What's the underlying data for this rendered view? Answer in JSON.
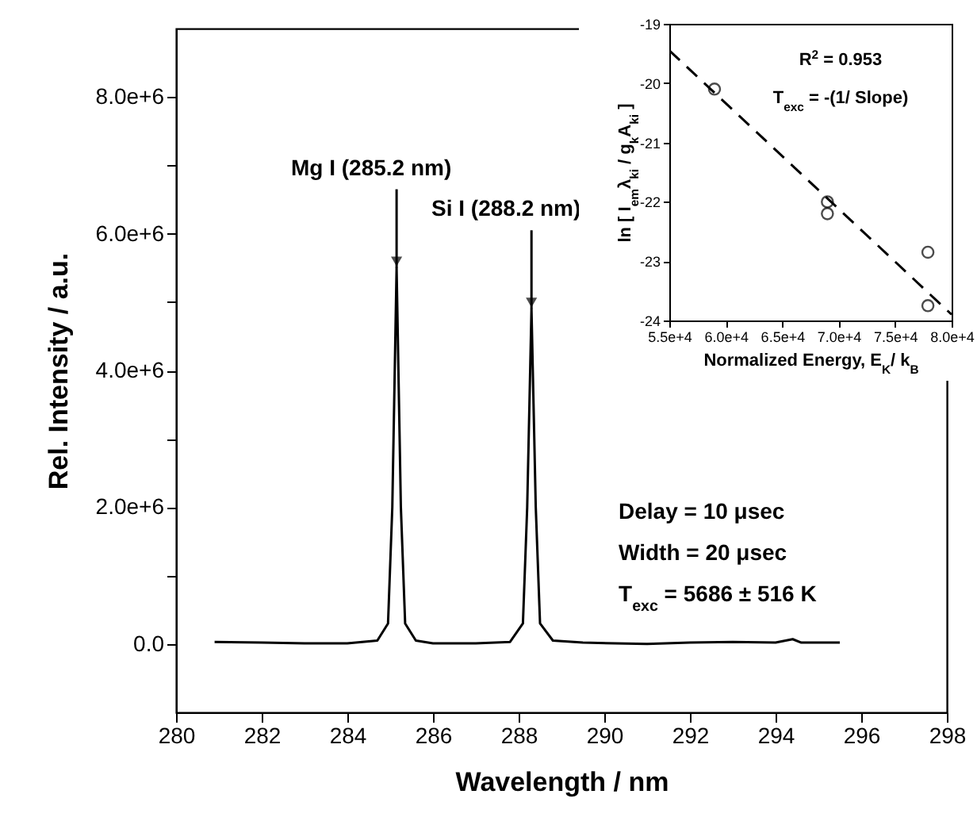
{
  "chart_data": [
    {
      "type": "line",
      "xlabel": "Wavelength / nm",
      "ylabel": "Rel. Intensity / a.u.",
      "color": "#000000",
      "x": [
        280.9,
        282,
        283,
        284,
        284.7,
        284.95,
        285.05,
        285.15,
        285.25,
        285.35,
        285.6,
        286,
        287,
        287.8,
        288.1,
        288.2,
        288.3,
        288.4,
        288.5,
        288.8,
        289.5,
        291,
        292,
        293,
        294,
        294.4,
        294.6,
        295.5
      ],
      "values": [
        30000,
        20000,
        10000,
        10000,
        50000,
        300000,
        2000000,
        5500000,
        2000000,
        300000,
        50000,
        10000,
        10000,
        30000,
        300000,
        2000000,
        4900000,
        2000000,
        300000,
        50000,
        20000,
        0,
        20000,
        30000,
        20000,
        70000,
        20000,
        20000
      ],
      "xlim": [
        280,
        298
      ],
      "ylim": [
        -1000000,
        9000000
      ],
      "xticks": [
        280,
        282,
        284,
        286,
        288,
        290,
        292,
        294,
        296,
        298
      ],
      "yticks": [
        {
          "value": 0,
          "label": "0.0"
        },
        {
          "value": 1000000,
          "label": null
        },
        {
          "value": 2000000,
          "label": "2.0e+6"
        },
        {
          "value": 3000000,
          "label": null
        },
        {
          "value": 4000000,
          "label": "4.0e+6"
        },
        {
          "value": 5000000,
          "label": null
        },
        {
          "value": 6000000,
          "label": "6.0e+6"
        },
        {
          "value": 7000000,
          "label": null
        },
        {
          "value": 8000000,
          "label": "8.0e+6"
        }
      ],
      "annotations": [
        {
          "text": "Mg I (285.2 nm)",
          "x": 285.15,
          "y": 5500000
        },
        {
          "text": "Si I (288.2 nm)",
          "x": 288.3,
          "y": 4900000
        },
        "Delay = 10 μsec",
        "Width = 20 μsec",
        "T$_{exc}$ = 5686 ± 516 K"
      ]
    },
    {
      "type": "scatter",
      "xlabel": "Normalized Energy, E$_{K}$/ k$_{B}$",
      "ylabel": "ln [ I$_{em}$λ$_{ki}$ / g$_{k}$A$_{ki}$ ]",
      "series": [
        {
          "type": "scatter",
          "marker": "circle",
          "color": "#000000",
          "x": [
            59000,
            69000,
            69000,
            77900,
            77900
          ],
          "values": [
            -20.1,
            -22.0,
            -22.2,
            -22.85,
            -23.75
          ]
        },
        {
          "type": "line",
          "color": "#000000",
          "line_style": "dashed",
          "x": [
            55000,
            80000
          ],
          "values": [
            -19.45,
            -23.9
          ]
        }
      ],
      "xlim": [
        55000,
        80000
      ],
      "ylim": [
        -24,
        -19
      ],
      "xticks": [
        {
          "value": 55000,
          "label": "5.5e+4"
        },
        {
          "value": 60000,
          "label": "6.0e+4"
        },
        {
          "value": 65000,
          "label": "6.5e+4"
        },
        {
          "value": 70000,
          "label": "7.0e+4"
        },
        {
          "value": 75000,
          "label": "7.5e+4"
        },
        {
          "value": 80000,
          "label": "8.0e+4"
        }
      ],
      "yticks": [
        -24,
        -23,
        -22,
        -21,
        -20,
        -19
      ],
      "annotations": [
        "R$^{2}$ = 0.953",
        "T$_{exc}$ = -(1/ Slope)"
      ]
    }
  ]
}
